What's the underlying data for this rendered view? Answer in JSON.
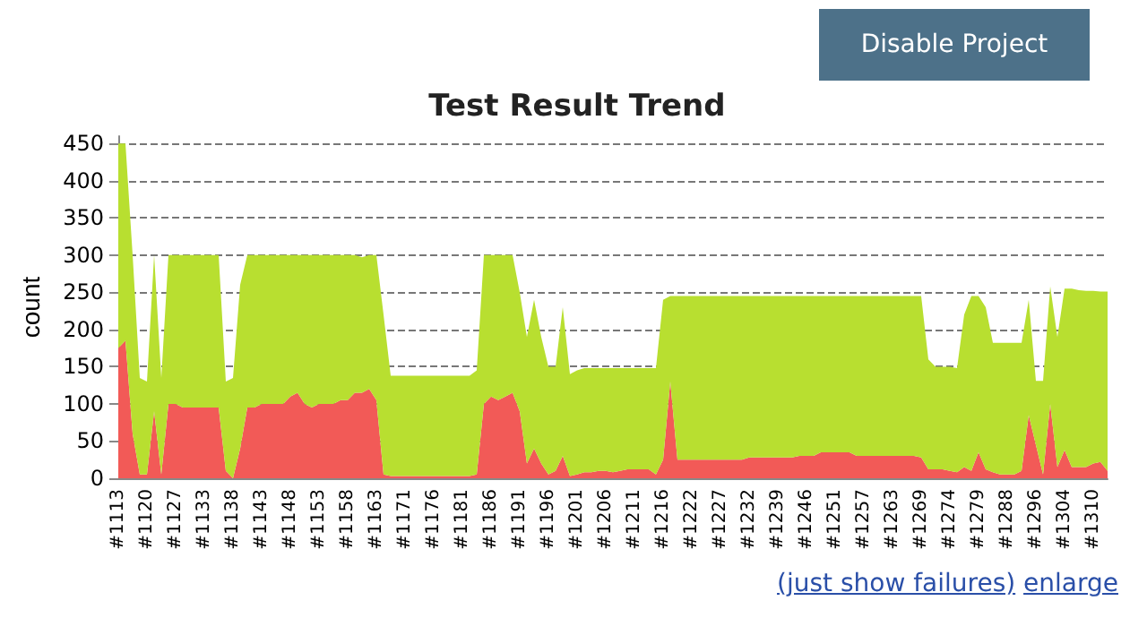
{
  "chart_data": {
    "type": "area",
    "title": "Test Result Trend",
    "ylabel": "count",
    "stacked": true,
    "grid": "y",
    "annotations": [
      "Disable Project",
      "(just show failures)",
      "enlarge"
    ],
    "categories": [
      "#1113",
      null,
      null,
      null,
      "#1120",
      null,
      null,
      null,
      "#1127",
      null,
      null,
      null,
      "#1133",
      null,
      null,
      null,
      "#1138",
      null,
      null,
      null,
      "#1143",
      null,
      null,
      null,
      "#1148",
      null,
      null,
      null,
      "#1153",
      null,
      null,
      null,
      "#1158",
      null,
      null,
      null,
      "#1163",
      null,
      null,
      null,
      "#1171",
      null,
      null,
      null,
      "#1176",
      null,
      null,
      null,
      "#1181",
      null,
      null,
      null,
      "#1186",
      null,
      null,
      null,
      "#1191",
      null,
      null,
      null,
      "#1196",
      null,
      null,
      null,
      "#1201",
      null,
      null,
      null,
      "#1206",
      null,
      null,
      null,
      "#1211",
      null,
      null,
      null,
      "#1216",
      null,
      null,
      null,
      "#1222",
      null,
      null,
      null,
      "#1227",
      null,
      null,
      null,
      "#1232",
      null,
      null,
      null,
      "#1239",
      null,
      null,
      null,
      "#1246",
      null,
      null,
      null,
      "#1251",
      null,
      null,
      null,
      "#1257",
      null,
      null,
      null,
      "#1263",
      null,
      null,
      null,
      "#1269",
      null,
      null,
      null,
      "#1274",
      null,
      null,
      null,
      "#1279",
      null,
      null,
      null,
      "#1288",
      null,
      null,
      null,
      "#1296",
      null,
      null,
      null,
      "#1304",
      null,
      null,
      null,
      "#1310",
      null,
      null
    ],
    "ylim": [
      0,
      460
    ],
    "yticks": [
      0,
      50,
      100,
      150,
      200,
      250,
      300,
      350,
      400,
      450
    ],
    "series": [
      {
        "color": "#f25a57",
        "values": [
          175,
          185,
          60,
          5,
          5,
          90,
          5,
          100,
          100,
          95,
          95,
          95,
          95,
          95,
          95,
          10,
          0,
          40,
          95,
          95,
          100,
          100,
          100,
          100,
          110,
          115,
          100,
          95,
          100,
          100,
          100,
          105,
          105,
          115,
          115,
          120,
          105,
          5,
          3,
          3,
          3,
          3,
          3,
          3,
          3,
          3,
          3,
          3,
          3,
          3,
          5,
          100,
          110,
          105,
          110,
          115,
          90,
          20,
          40,
          20,
          5,
          10,
          30,
          3,
          5,
          8,
          8,
          10,
          10,
          8,
          10,
          12,
          12,
          12,
          12,
          5,
          25,
          130,
          25,
          25,
          25,
          25,
          25,
          25,
          25,
          25,
          25,
          25,
          28,
          28,
          28,
          28,
          28,
          28,
          28,
          30,
          30,
          30,
          35,
          35,
          35,
          35,
          35,
          30,
          30,
          30,
          30,
          30,
          30,
          30,
          30,
          30,
          28,
          12,
          12,
          12,
          10,
          8,
          15,
          10,
          35,
          12,
          8,
          5,
          5,
          5,
          10,
          85,
          45,
          5,
          100,
          15,
          38,
          15,
          15,
          15,
          20,
          22,
          10
        ]
      },
      {
        "color": "#b8df30",
        "values": [
          275,
          265,
          240,
          130,
          125,
          210,
          130,
          200,
          200,
          205,
          205,
          205,
          205,
          205,
          205,
          120,
          135,
          220,
          205,
          205,
          200,
          200,
          200,
          200,
          190,
          185,
          200,
          205,
          200,
          200,
          200,
          195,
          195,
          185,
          182,
          180,
          195,
          215,
          135,
          135,
          135,
          135,
          135,
          135,
          135,
          135,
          135,
          135,
          135,
          135,
          140,
          200,
          190,
          195,
          190,
          185,
          160,
          170,
          200,
          170,
          145,
          140,
          200,
          137,
          140,
          140,
          140,
          138,
          138,
          140,
          138,
          136,
          136,
          136,
          136,
          143,
          215,
          115,
          220,
          220,
          220,
          220,
          220,
          220,
          220,
          220,
          220,
          220,
          217,
          217,
          217,
          217,
          217,
          217,
          217,
          215,
          215,
          215,
          210,
          210,
          210,
          210,
          210,
          215,
          215,
          215,
          215,
          215,
          215,
          215,
          215,
          215,
          217,
          148,
          138,
          138,
          140,
          140,
          205,
          235,
          210,
          218,
          174,
          177,
          177,
          177,
          172,
          155,
          86,
          126,
          158,
          175,
          217,
          240,
          238,
          237,
          232,
          229,
          241
        ]
      }
    ]
  }
}
